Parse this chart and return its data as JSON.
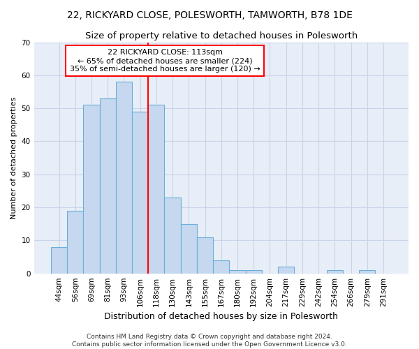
{
  "title1": "22, RICKYARD CLOSE, POLESWORTH, TAMWORTH, B78 1DE",
  "title2": "Size of property relative to detached houses in Polesworth",
  "xlabel": "Distribution of detached houses by size in Polesworth",
  "ylabel": "Number of detached properties",
  "categories": [
    "44sqm",
    "56sqm",
    "69sqm",
    "81sqm",
    "93sqm",
    "106sqm",
    "118sqm",
    "130sqm",
    "143sqm",
    "155sqm",
    "167sqm",
    "180sqm",
    "192sqm",
    "204sqm",
    "217sqm",
    "229sqm",
    "242sqm",
    "254sqm",
    "266sqm",
    "279sqm",
    "291sqm"
  ],
  "values": [
    8,
    19,
    51,
    53,
    58,
    49,
    51,
    23,
    15,
    11,
    4,
    1,
    1,
    0,
    2,
    0,
    0,
    1,
    0,
    1,
    0
  ],
  "bar_color": "#c5d8f0",
  "bar_edge_color": "#6aafd6",
  "annotation_text": "22 RICKYARD CLOSE: 113sqm\n← 65% of detached houses are smaller (224)\n35% of semi-detached houses are larger (120) →",
  "annotation_box_color": "white",
  "annotation_box_edge_color": "red",
  "vline_color": "red",
  "vline_x_index": 5.5,
  "ylim": [
    0,
    70
  ],
  "yticks": [
    0,
    10,
    20,
    30,
    40,
    50,
    60,
    70
  ],
  "grid_color": "#c8d4e8",
  "bg_color": "#e8eef8",
  "footer": "Contains HM Land Registry data © Crown copyright and database right 2024.\nContains public sector information licensed under the Open Government Licence v3.0.",
  "title_fontsize": 10,
  "subtitle_fontsize": 9.5,
  "xlabel_fontsize": 9,
  "ylabel_fontsize": 8,
  "tick_fontsize": 7.5,
  "footer_fontsize": 6.5,
  "annot_fontsize": 8
}
